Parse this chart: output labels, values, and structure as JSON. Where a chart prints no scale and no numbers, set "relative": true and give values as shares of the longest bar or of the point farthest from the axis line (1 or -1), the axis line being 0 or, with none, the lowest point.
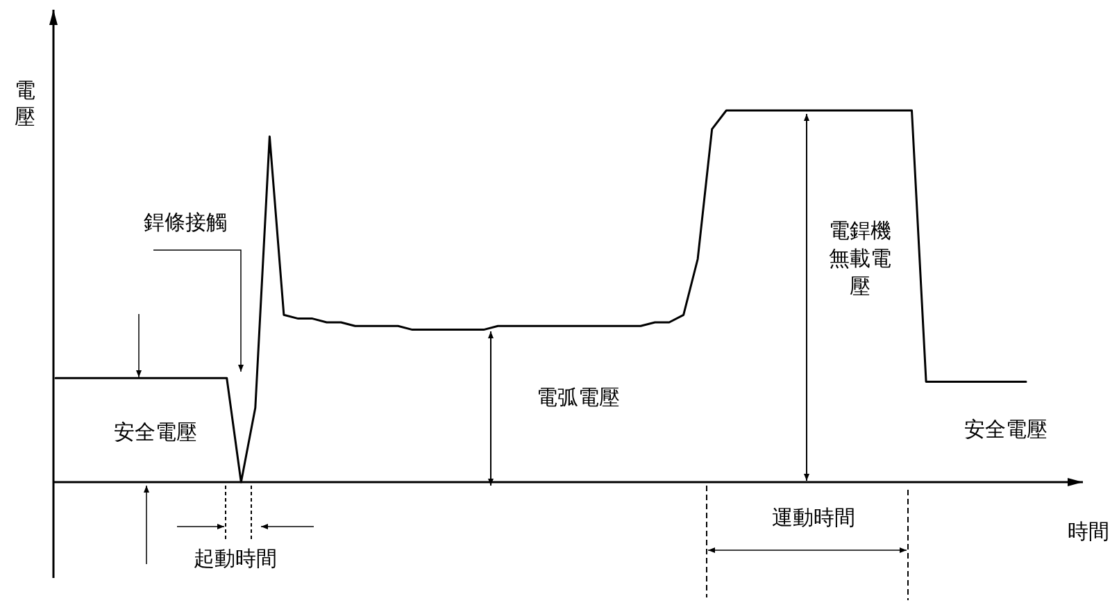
{
  "chart_data": {
    "type": "line",
    "relative": true,
    "xlabel": "時間",
    "ylabel": "電壓",
    "categories": [
      null,
      null,
      null,
      null,
      null,
      null,
      null,
      null,
      null,
      null,
      null,
      null,
      null,
      null,
      null,
      null,
      null,
      null,
      null,
      null,
      null,
      null,
      null,
      null,
      null,
      null,
      null,
      null,
      null,
      null,
      null,
      null,
      null,
      null,
      null,
      null,
      null,
      null,
      null,
      null,
      null,
      null,
      null,
      null,
      null,
      null,
      null,
      null,
      null,
      null,
      null,
      null,
      null,
      null,
      null,
      null,
      null,
      null,
      null,
      null,
      null,
      null,
      null,
      null,
      null,
      null,
      null,
      null,
      null
    ],
    "series": [
      {
        "color": "#000000",
        "values": [
          0.28,
          0.28,
          0.28,
          0.28,
          0.28,
          0.28,
          0.28,
          0.28,
          0.28,
          0.28,
          0.28,
          0.28,
          0.28,
          0,
          0.2,
          0.93,
          0.45,
          0.44,
          0.44,
          0.43,
          0.43,
          0.42,
          0.42,
          0.42,
          0.42,
          0.41,
          0.41,
          0.41,
          0.41,
          0.41,
          0.41,
          0.42,
          0.42,
          0.42,
          0.42,
          0.42,
          0.42,
          0.42,
          0.42,
          0.42,
          0.42,
          0.42,
          0.43,
          0.43,
          0.45,
          0.6,
          0.95,
          1,
          1,
          1,
          1,
          1,
          1,
          1,
          1,
          1,
          1,
          1,
          1,
          1,
          1,
          0.27,
          0.27,
          0.27,
          0.27,
          0.27,
          0.27,
          0.27,
          0.27
        ]
      }
    ],
    "annotations": [
      "銲條接觸",
      "安全電壓",
      "電弧電壓",
      "電銲機無載電壓",
      "安全電壓",
      "起動時間",
      "運動時間"
    ]
  }
}
